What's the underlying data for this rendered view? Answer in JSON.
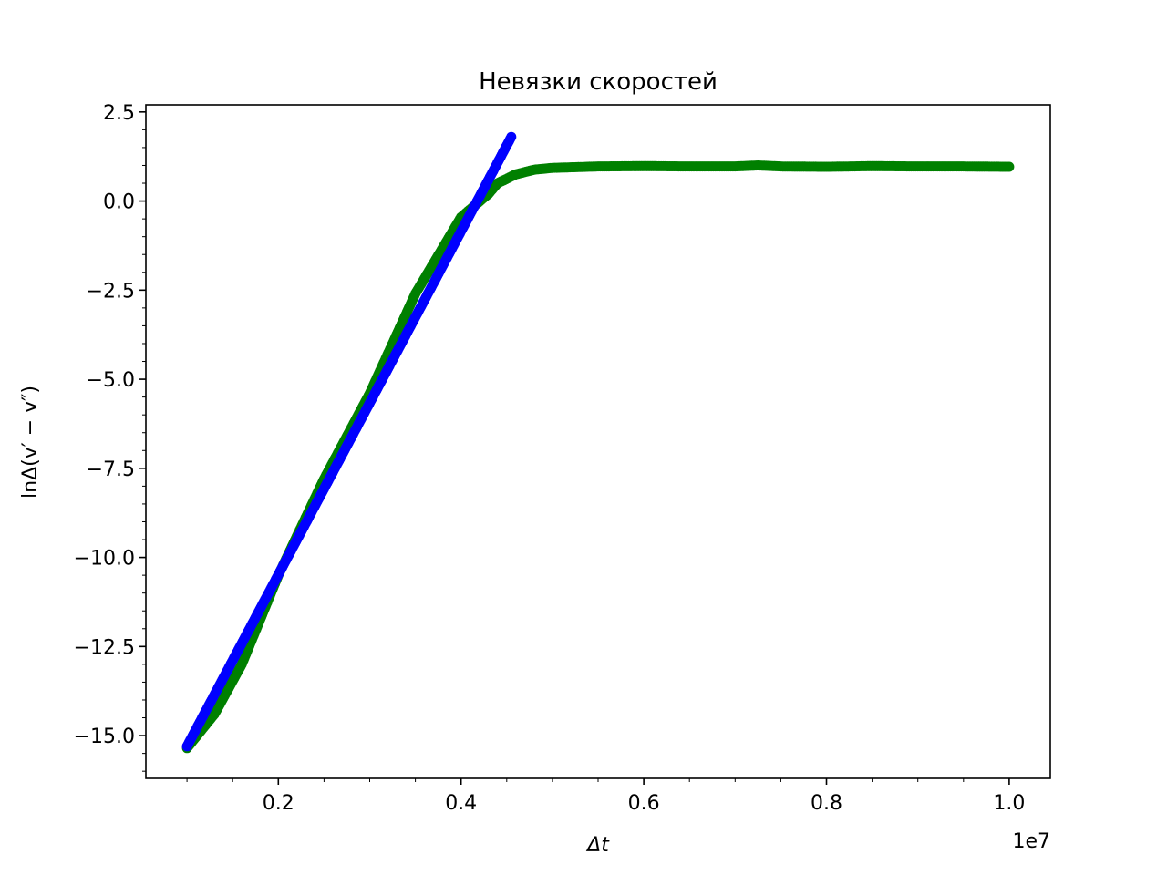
{
  "chart_data": {
    "type": "scatter",
    "title": "Невязки скоростей",
    "xlabel": "Δt",
    "ylabel": "lnΔ(v′ − v″)",
    "x_offset_label": "1e7",
    "xlim": [
      0.055,
      1.045
    ],
    "ylim": [
      -16.2,
      2.7
    ],
    "x_ticks": [
      0.2,
      0.4,
      0.6,
      0.8,
      1.0
    ],
    "x_tick_labels": [
      "0.2",
      "0.4",
      "0.6",
      "0.8",
      "1.0"
    ],
    "y_ticks": [
      2.5,
      0.0,
      -2.5,
      -5.0,
      -7.5,
      -10.0,
      -12.5,
      -15.0
    ],
    "y_tick_labels": [
      "2.5",
      "0.0",
      "−2.5",
      "−5.0",
      "−7.5",
      "−10.0",
      "−12.5",
      "−15.0"
    ],
    "grid": false,
    "series": [
      {
        "color": "#008000",
        "points": [
          [
            0.1,
            -15.35
          ],
          [
            0.13,
            -14.4
          ],
          [
            0.16,
            -13.0
          ],
          [
            0.2,
            -10.5
          ],
          [
            0.25,
            -7.8
          ],
          [
            0.3,
            -5.4
          ],
          [
            0.35,
            -2.6
          ],
          [
            0.4,
            -0.45
          ],
          [
            0.43,
            0.2
          ],
          [
            0.44,
            0.5
          ],
          [
            0.46,
            0.75
          ],
          [
            0.48,
            0.88
          ],
          [
            0.5,
            0.93
          ],
          [
            0.55,
            0.97
          ],
          [
            0.6,
            0.98
          ],
          [
            0.65,
            0.97
          ],
          [
            0.7,
            0.97
          ],
          [
            0.725,
            1.0
          ],
          [
            0.75,
            0.97
          ],
          [
            0.8,
            0.96
          ],
          [
            0.85,
            0.98
          ],
          [
            0.9,
            0.97
          ],
          [
            0.95,
            0.97
          ],
          [
            1.0,
            0.96
          ]
        ]
      },
      {
        "color": "#0000ff",
        "points": [
          [
            0.1,
            -15.3
          ],
          [
            0.455,
            1.8
          ]
        ]
      }
    ]
  }
}
